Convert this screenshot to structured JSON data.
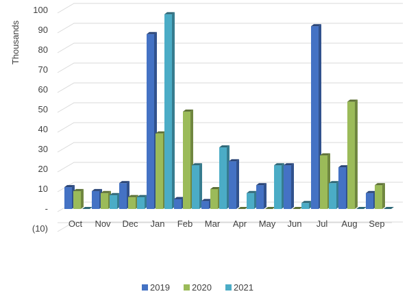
{
  "chart_data": {
    "type": "bar",
    "ylabel": "Thousands",
    "categories": [
      "Oct",
      "Nov",
      "Dec",
      "Jan",
      "Feb",
      "Mar",
      "Apr",
      "May",
      "Jun",
      "Jul",
      "Aug",
      "Sep"
    ],
    "yticks": [
      "(10)",
      "-",
      "10",
      "20",
      "30",
      "40",
      "50",
      "60",
      "70",
      "80",
      "90",
      "100"
    ],
    "ylim": [
      -10,
      100
    ],
    "grid": true,
    "legend_position": "bottom",
    "series": [
      {
        "name": "2019",
        "color": "#4472C4",
        "values": [
          11,
          9,
          13,
          88,
          5,
          4,
          24,
          12,
          22,
          92,
          21,
          8
        ]
      },
      {
        "name": "2020",
        "color": "#9BBB59",
        "values": [
          9,
          8,
          6,
          38,
          49,
          10,
          0,
          0,
          0,
          27,
          54,
          12
        ]
      },
      {
        "name": "2021",
        "color": "#4BACC6",
        "values": [
          0,
          7,
          6,
          98,
          22,
          31,
          8,
          22,
          3,
          13,
          0,
          0
        ]
      }
    ]
  }
}
